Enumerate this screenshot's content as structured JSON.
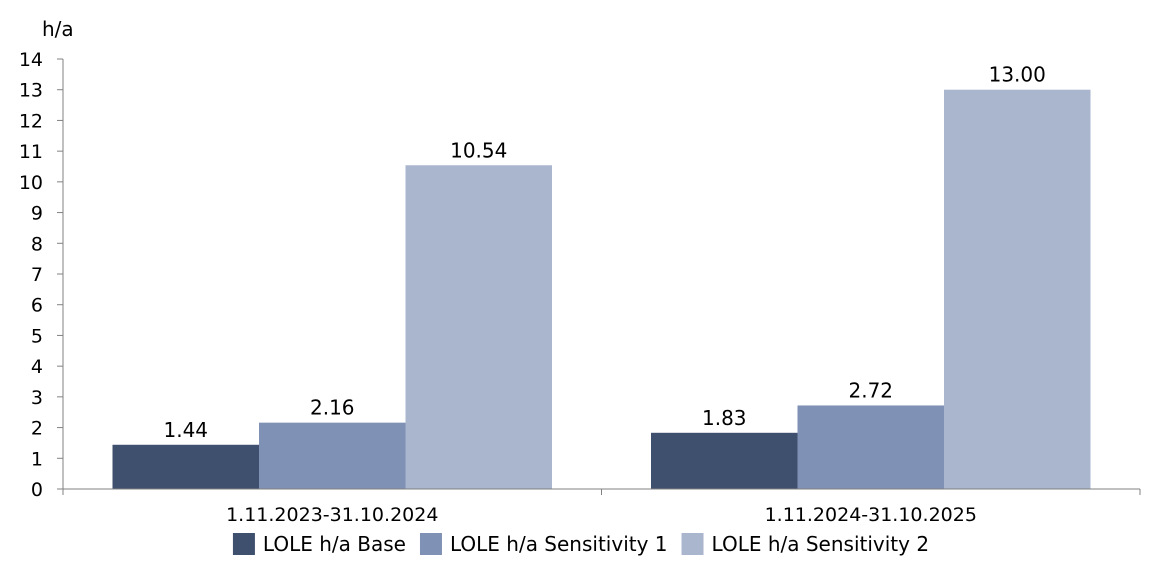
{
  "chart_data": {
    "type": "bar",
    "ylabel": "h/a",
    "ylim": [
      0,
      14
    ],
    "yticks": [
      0,
      1,
      2,
      3,
      4,
      5,
      6,
      7,
      8,
      9,
      10,
      11,
      12,
      13,
      14
    ],
    "categories": [
      "1.11.2023-31.10.2024",
      "1.11.2024-31.10.2025"
    ],
    "series": [
      {
        "name": "LOLE h/a Base",
        "values": [
          1.44,
          1.83
        ],
        "labels": [
          "1.44",
          "1.83"
        ],
        "color": "#3f4f6e"
      },
      {
        "name": "LOLE h/a Sensitivity 1",
        "values": [
          2.16,
          2.72
        ],
        "labels": [
          "2.16",
          "2.72"
        ],
        "color": "#7f91b4"
      },
      {
        "name": "LOLE h/a Sensitivity 2",
        "values": [
          10.54,
          13.0
        ],
        "labels": [
          "10.54",
          "13.00"
        ],
        "color": "#aab6cd"
      }
    ],
    "legend_position": "bottom",
    "grid": false
  }
}
